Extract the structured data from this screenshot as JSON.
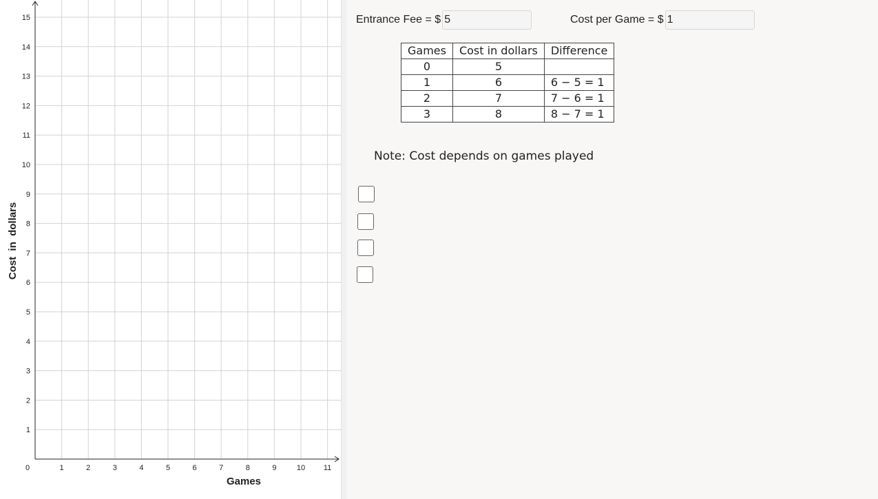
{
  "graph": {
    "xlabel": "Games",
    "ylabel": "Cost  in  dollars",
    "origin_label": "0",
    "x_ticks": [
      "1",
      "2",
      "3",
      "4",
      "5",
      "6",
      "7",
      "8",
      "9",
      "10",
      "11"
    ],
    "y_ticks": [
      "1",
      "2",
      "3",
      "4",
      "5",
      "6",
      "7",
      "8",
      "9",
      "10",
      "11",
      "12",
      "13",
      "14",
      "15"
    ],
    "x_range": [
      0,
      11.3
    ],
    "y_range": [
      0,
      15.5
    ],
    "grid": true
  },
  "inputs": {
    "entrance_fee": {
      "label": "Entrance Fee = $",
      "value": "5"
    },
    "cost_per_game": {
      "label": "Cost per Game = $",
      "value": "1"
    }
  },
  "table": {
    "headers": [
      "Games",
      "Cost in dollars",
      "Difference"
    ],
    "rows": [
      [
        "0",
        "5",
        ""
      ],
      [
        "1",
        "6",
        "6 − 5 = 1"
      ],
      [
        "2",
        "7",
        "7 − 6 = 1"
      ],
      [
        "3",
        "8",
        "8 − 7 = 1"
      ]
    ]
  },
  "note": "Note: Cost depends on games played",
  "checkboxes": [
    {
      "checked": false
    },
    {
      "checked": false
    },
    {
      "checked": false
    },
    {
      "checked": false
    }
  ]
}
